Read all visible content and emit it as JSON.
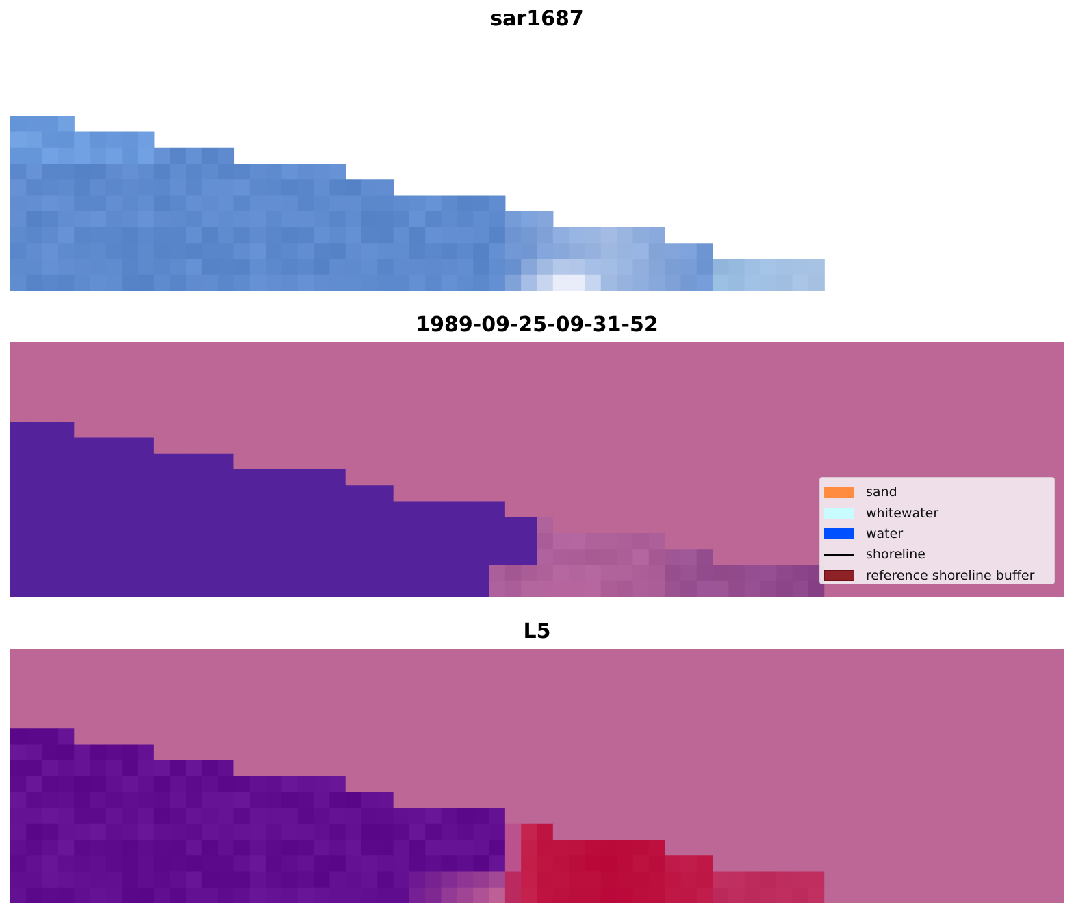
{
  "panels": [
    {
      "title": "sar1687",
      "kind": "rgb"
    },
    {
      "title": "1989-09-25-09-31-52",
      "kind": "classified"
    },
    {
      "title": "L5",
      "kind": "index"
    }
  ],
  "legend": {
    "items": [
      {
        "label": "sand",
        "color": "#ff8c3f",
        "type": "patch"
      },
      {
        "label": "whitewater",
        "color": "#c8fcff",
        "type": "patch"
      },
      {
        "label": "water",
        "color": "#0050ff",
        "type": "patch"
      },
      {
        "label": "shoreline",
        "color": "#000000",
        "type": "line"
      },
      {
        "label": "reference shoreline buffer",
        "color": "#8e2226",
        "type": "patch"
      }
    ]
  },
  "colors": {
    "nodata_overlay": "#bc6796",
    "water_class": "#54229a"
  }
}
